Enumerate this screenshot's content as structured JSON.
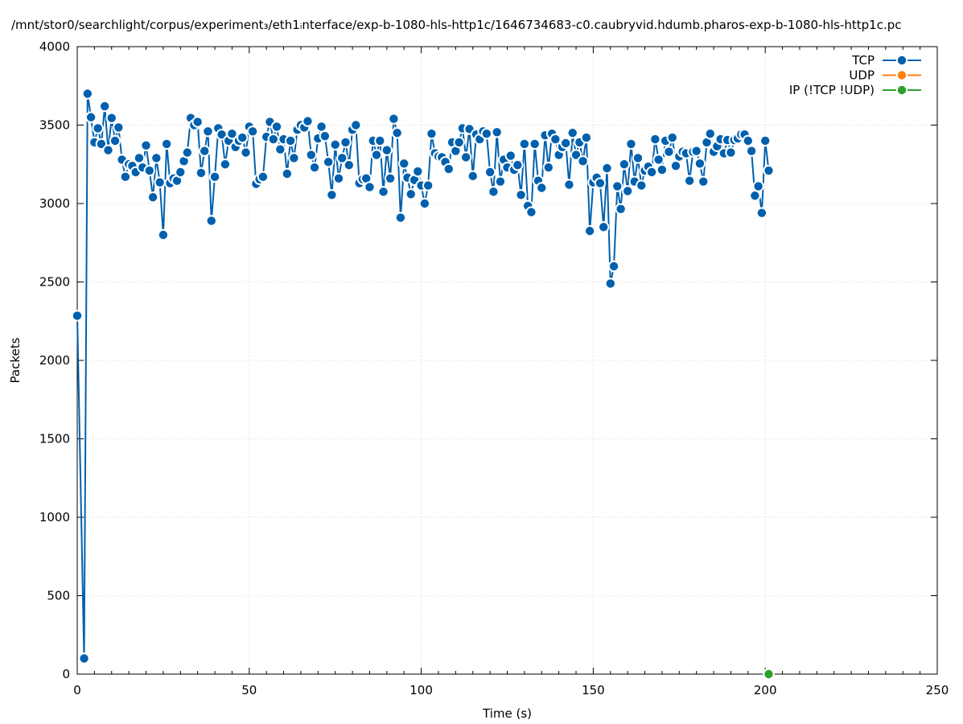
{
  "chart_data": {
    "type": "line",
    "title": "/mnt/stor0/searchlight/corpus/experiment₃/eth1ᵢnterface/exp-b-1080-hls-http1c/1646734683-c0.caubryvid.hdumb.pharos-exp-b-1080-hls-http1c.pc",
    "xlabel": "Time (s)",
    "ylabel": "Packets",
    "xlim": [
      0,
      250
    ],
    "ylim": [
      0,
      4000
    ],
    "xticks": [
      0,
      50,
      100,
      150,
      200,
      250
    ],
    "yticks": [
      0,
      500,
      1000,
      1500,
      2000,
      2500,
      3000,
      3500,
      4000
    ],
    "xtick_labels": [
      "0",
      "50",
      "100",
      "150",
      "200",
      "250"
    ],
    "ytick_labels": [
      "0",
      "500",
      "1000",
      "1500",
      "2000",
      "2500",
      "3000",
      "3500",
      "4000"
    ],
    "grid": true,
    "legend_position": "top-right",
    "series": [
      {
        "name": "TCP",
        "color": "#0060ad",
        "x": [
          0,
          2,
          3,
          4,
          5,
          6,
          7,
          8,
          9,
          10,
          11,
          12,
          13,
          14,
          15,
          16,
          17,
          18,
          19,
          20,
          21,
          22,
          23,
          24,
          25,
          26,
          27,
          28,
          29,
          30,
          31,
          32,
          33,
          34,
          35,
          36,
          37,
          38,
          39,
          40,
          41,
          42,
          43,
          44,
          45,
          46,
          47,
          48,
          49,
          50,
          51,
          52,
          53,
          54,
          55,
          56,
          57,
          58,
          59,
          60,
          61,
          62,
          63,
          64,
          65,
          66,
          67,
          68,
          69,
          70,
          71,
          72,
          73,
          74,
          75,
          76,
          77,
          78,
          79,
          80,
          81,
          82,
          83,
          84,
          85,
          86,
          87,
          88,
          89,
          90,
          91,
          92,
          93,
          94,
          95,
          96,
          97,
          98,
          99,
          100,
          101,
          102,
          103,
          104,
          105,
          106,
          107,
          108,
          109,
          110,
          111,
          112,
          113,
          114,
          115,
          116,
          117,
          118,
          119,
          120,
          121,
          122,
          123,
          124,
          125,
          126,
          127,
          128,
          129,
          130,
          131,
          132,
          133,
          134,
          135,
          136,
          137,
          138,
          139,
          140,
          141,
          142,
          143,
          144,
          145,
          146,
          147,
          148,
          149,
          150,
          151,
          152,
          153,
          154,
          155,
          156,
          157,
          158,
          159,
          160,
          161,
          162,
          163,
          164,
          165,
          166,
          167,
          168,
          169,
          170,
          171,
          172,
          173,
          174,
          175,
          176,
          177,
          178,
          179,
          180,
          181,
          182,
          183,
          184,
          185,
          186,
          187,
          188,
          189,
          190,
          191,
          192,
          193,
          194,
          195,
          196,
          197,
          198,
          199,
          200,
          201
        ],
        "values": [
          2285,
          100,
          3700,
          3550,
          3390,
          3480,
          3380,
          3620,
          3340,
          3545,
          3400,
          3485,
          3280,
          3170,
          3250,
          3240,
          3200,
          3290,
          3230,
          3370,
          3210,
          3040,
          3290,
          3135,
          2800,
          3380,
          3130,
          3160,
          3145,
          3200,
          3270,
          3325,
          3545,
          3500,
          3520,
          3195,
          3335,
          3460,
          2890,
          3170,
          3480,
          3440,
          3250,
          3400,
          3445,
          3360,
          3400,
          3420,
          3325,
          3490,
          3460,
          3125,
          3155,
          3170,
          3425,
          3520,
          3410,
          3490,
          3345,
          3410,
          3190,
          3400,
          3290,
          3470,
          3500,
          3485,
          3525,
          3310,
          3230,
          3415,
          3490,
          3430,
          3265,
          3055,
          3375,
          3160,
          3290,
          3390,
          3245,
          3470,
          3500,
          3130,
          3155,
          3160,
          3105,
          3400,
          3310,
          3400,
          3075,
          3340,
          3160,
          3540,
          3450,
          2910,
          3255,
          3165,
          3060,
          3150,
          3205,
          3115,
          3000,
          3115,
          3445,
          3320,
          3300,
          3295,
          3265,
          3220,
          3390,
          3335,
          3390,
          3480,
          3295,
          3475,
          3175,
          3440,
          3410,
          3460,
          3445,
          3200,
          3075,
          3455,
          3140,
          3280,
          3230,
          3305,
          3215,
          3245,
          3055,
          3380,
          2985,
          2945,
          3380,
          3145,
          3100,
          3435,
          3230,
          3445,
          3410,
          3310,
          3360,
          3385,
          3120,
          3450,
          3310,
          3390,
          3270,
          3420,
          2825,
          3135,
          3165,
          3130,
          2850,
          3225,
          2490,
          2600,
          3110,
          2965,
          3250,
          3080,
          3380,
          3140,
          3290,
          3115,
          3210,
          3235,
          3200,
          3410,
          3280,
          3215,
          3400,
          3330,
          3420,
          3240,
          3300,
          3330,
          3320,
          3145,
          3330,
          3335,
          3255,
          3140,
          3390,
          3445,
          3330,
          3365,
          3410,
          3320,
          3405,
          3325,
          3405,
          3415,
          3440,
          3440,
          3400,
          3335,
          3050,
          3110,
          2940,
          3400,
          3210
        ]
      },
      {
        "name": "UDP",
        "color": "#ff7f0e",
        "x": [],
        "values": []
      },
      {
        "name": "IP (!TCP  !UDP)",
        "color": "#2ca02c",
        "x": [
          201
        ],
        "values": [
          0
        ]
      }
    ]
  }
}
